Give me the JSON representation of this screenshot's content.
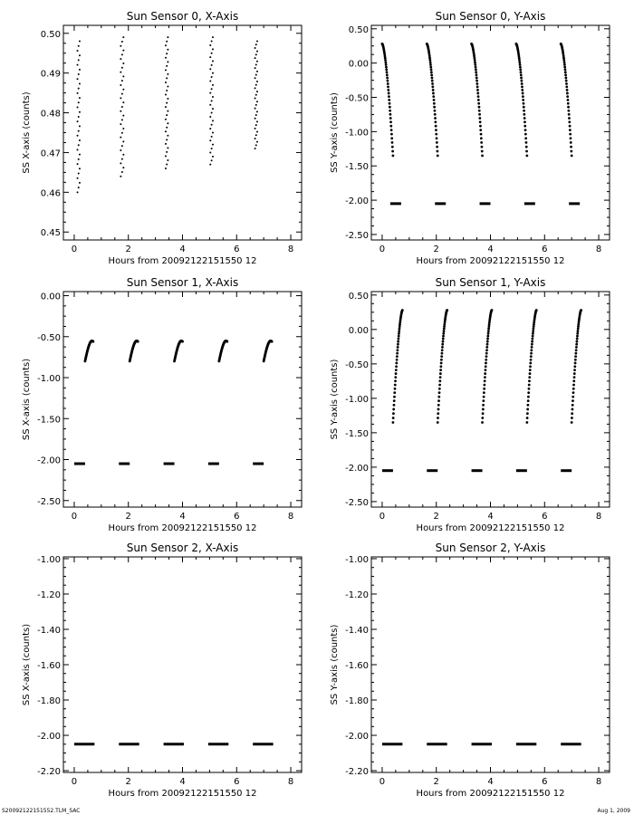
{
  "footer": {
    "left": "S20092122151552.TLM_SAC",
    "right": "Aug  1, 2009"
  },
  "chart_data": [
    {
      "type": "scatter",
      "title": "Sun Sensor 0, X-Axis",
      "xlabel": "Hours from 20092122151550 12",
      "ylabel": "SS X-axis (counts)",
      "xlim": [
        -0.4,
        8.4
      ],
      "ylim": [
        0.448,
        0.502
      ],
      "x_ticks": [
        "0",
        "2",
        "4",
        "6",
        "8"
      ],
      "x_tick_values": [
        0,
        2,
        4,
        6,
        8
      ],
      "y_ticks": [
        "0.45",
        "0.46",
        "0.47",
        "0.48",
        "0.49",
        "0.50"
      ],
      "y_tick_values": [
        0.45,
        0.46,
        0.47,
        0.48,
        0.49,
        0.5
      ],
      "series": [
        {
          "kind": "vertical-scatter",
          "segments": [
            {
              "x": [
                0.12,
                0.2
              ],
              "y": [
                0.46,
                0.498
              ]
            },
            {
              "x": [
                1.72,
                1.82
              ],
              "y": [
                0.464,
                0.499
              ]
            },
            {
              "x": [
                3.38,
                3.46
              ],
              "y": [
                0.466,
                0.499
              ]
            },
            {
              "x": [
                5.03,
                5.12
              ],
              "y": [
                0.467,
                0.499
              ]
            },
            {
              "x": [
                6.68,
                6.76
              ],
              "y": [
                0.471,
                0.498
              ]
            }
          ]
        }
      ]
    },
    {
      "type": "scatter",
      "title": "Sun Sensor 0, Y-Axis",
      "xlabel": "Hours from 20092122151550 12",
      "ylabel": "SS Y-axis (counts)",
      "xlim": [
        -0.4,
        8.4
      ],
      "ylim": [
        -2.58,
        0.55
      ],
      "x_ticks": [
        "0",
        "2",
        "4",
        "6",
        "8"
      ],
      "x_tick_values": [
        0,
        2,
        4,
        6,
        8
      ],
      "y_ticks": [
        "0.50",
        "0.00",
        "-0.50",
        "-1.00",
        "-1.50",
        "-2.00",
        "-2.50"
      ],
      "y_tick_values": [
        0.5,
        0.0,
        -0.5,
        -1.0,
        -1.5,
        -2.0,
        -2.5
      ],
      "series": [
        {
          "kind": "curve",
          "segments": [
            {
              "x": [
                0.0,
                0.4
              ],
              "y": [
                0.28,
                -1.35
              ]
            },
            {
              "x": [
                1.65,
                2.05
              ],
              "y": [
                0.28,
                -1.35
              ]
            },
            {
              "x": [
                3.3,
                3.7
              ],
              "y": [
                0.28,
                -1.35
              ]
            },
            {
              "x": [
                4.95,
                5.35
              ],
              "y": [
                0.28,
                -1.35
              ]
            },
            {
              "x": [
                6.6,
                7.0
              ],
              "y": [
                0.28,
                -1.35
              ]
            }
          ]
        },
        {
          "kind": "hsegment",
          "segments": [
            {
              "x": [
                0.3,
                0.7
              ],
              "y": [
                -2.05,
                -2.05
              ]
            },
            {
              "x": [
                1.95,
                2.35
              ],
              "y": [
                -2.05,
                -2.05
              ]
            },
            {
              "x": [
                3.6,
                4.0
              ],
              "y": [
                -2.05,
                -2.05
              ]
            },
            {
              "x": [
                5.25,
                5.65
              ],
              "y": [
                -2.05,
                -2.05
              ]
            },
            {
              "x": [
                6.9,
                7.3
              ],
              "y": [
                -2.05,
                -2.05
              ]
            }
          ]
        }
      ]
    },
    {
      "type": "scatter",
      "title": "Sun Sensor 1, X-Axis",
      "xlabel": "Hours from 20092122151550 12",
      "ylabel": "SS X-axis (counts)",
      "xlim": [
        -0.4,
        8.4
      ],
      "ylim": [
        -2.58,
        0.05
      ],
      "x_ticks": [
        "0",
        "2",
        "4",
        "6",
        "8"
      ],
      "x_tick_values": [
        0,
        2,
        4,
        6,
        8
      ],
      "y_ticks": [
        "0.00",
        "-0.50",
        "-1.00",
        "-1.50",
        "-2.00",
        "-2.50"
      ],
      "y_tick_values": [
        0.0,
        -0.5,
        -1.0,
        -1.5,
        -2.0,
        -2.5
      ],
      "series": [
        {
          "kind": "arc",
          "segments": [
            {
              "x": [
                0.4,
                0.7
              ],
              "y": [
                -0.8,
                -0.5
              ]
            },
            {
              "x": [
                2.05,
                2.35
              ],
              "y": [
                -0.8,
                -0.5
              ]
            },
            {
              "x": [
                3.7,
                4.0
              ],
              "y": [
                -0.8,
                -0.5
              ]
            },
            {
              "x": [
                5.35,
                5.65
              ],
              "y": [
                -0.8,
                -0.5
              ]
            },
            {
              "x": [
                7.0,
                7.3
              ],
              "y": [
                -0.8,
                -0.5
              ]
            }
          ]
        },
        {
          "kind": "hsegment",
          "segments": [
            {
              "x": [
                0.0,
                0.4
              ],
              "y": [
                -2.05,
                -2.05
              ]
            },
            {
              "x": [
                1.65,
                2.05
              ],
              "y": [
                -2.05,
                -2.05
              ]
            },
            {
              "x": [
                3.3,
                3.7
              ],
              "y": [
                -2.05,
                -2.05
              ]
            },
            {
              "x": [
                4.95,
                5.35
              ],
              "y": [
                -2.05,
                -2.05
              ]
            },
            {
              "x": [
                6.6,
                7.0
              ],
              "y": [
                -2.05,
                -2.05
              ]
            }
          ]
        }
      ]
    },
    {
      "type": "scatter",
      "title": "Sun Sensor 1, Y-Axis",
      "xlabel": "Hours from 20092122151550 12",
      "ylabel": "SS Y-axis (counts)",
      "xlim": [
        -0.4,
        8.4
      ],
      "ylim": [
        -2.58,
        0.55
      ],
      "x_ticks": [
        "0",
        "2",
        "4",
        "6",
        "8"
      ],
      "x_tick_values": [
        0,
        2,
        4,
        6,
        8
      ],
      "y_ticks": [
        "0.50",
        "0.00",
        "-0.50",
        "-1.00",
        "-1.50",
        "-2.00",
        "-2.50"
      ],
      "y_tick_values": [
        0.5,
        0.0,
        -0.5,
        -1.0,
        -1.5,
        -2.0,
        -2.5
      ],
      "series": [
        {
          "kind": "curve-up",
          "segments": [
            {
              "x": [
                0.4,
                0.75
              ],
              "y": [
                -1.35,
                0.28
              ]
            },
            {
              "x": [
                2.05,
                2.4
              ],
              "y": [
                -1.35,
                0.28
              ]
            },
            {
              "x": [
                3.7,
                4.05
              ],
              "y": [
                -1.35,
                0.28
              ]
            },
            {
              "x": [
                5.35,
                5.7
              ],
              "y": [
                -1.35,
                0.28
              ]
            },
            {
              "x": [
                7.0,
                7.35
              ],
              "y": [
                -1.35,
                0.28
              ]
            }
          ]
        },
        {
          "kind": "hsegment",
          "segments": [
            {
              "x": [
                0.0,
                0.4
              ],
              "y": [
                -2.05,
                -2.05
              ]
            },
            {
              "x": [
                1.65,
                2.05
              ],
              "y": [
                -2.05,
                -2.05
              ]
            },
            {
              "x": [
                3.3,
                3.7
              ],
              "y": [
                -2.05,
                -2.05
              ]
            },
            {
              "x": [
                4.95,
                5.35
              ],
              "y": [
                -2.05,
                -2.05
              ]
            },
            {
              "x": [
                6.6,
                7.0
              ],
              "y": [
                -2.05,
                -2.05
              ]
            }
          ]
        }
      ]
    },
    {
      "type": "scatter",
      "title": "Sun Sensor 2, X-Axis",
      "xlabel": "Hours from 20092122151550 12",
      "ylabel": "SS X-axis (counts)",
      "xlim": [
        -0.4,
        8.4
      ],
      "ylim": [
        -2.21,
        -0.99
      ],
      "x_ticks": [
        "0",
        "2",
        "4",
        "6",
        "8"
      ],
      "x_tick_values": [
        0,
        2,
        4,
        6,
        8
      ],
      "y_ticks": [
        "-1.00",
        "-1.20",
        "-1.40",
        "-1.60",
        "-1.80",
        "-2.00",
        "-2.20"
      ],
      "y_tick_values": [
        -1.0,
        -1.2,
        -1.4,
        -1.6,
        -1.8,
        -2.0,
        -2.2
      ],
      "series": [
        {
          "kind": "hsegment",
          "segments": [
            {
              "x": [
                0.0,
                0.75
              ],
              "y": [
                -2.05,
                -2.05
              ]
            },
            {
              "x": [
                1.65,
                2.4
              ],
              "y": [
                -2.05,
                -2.05
              ]
            },
            {
              "x": [
                3.3,
                4.05
              ],
              "y": [
                -2.05,
                -2.05
              ]
            },
            {
              "x": [
                4.95,
                5.7
              ],
              "y": [
                -2.05,
                -2.05
              ]
            },
            {
              "x": [
                6.6,
                7.35
              ],
              "y": [
                -2.05,
                -2.05
              ]
            }
          ]
        }
      ]
    },
    {
      "type": "scatter",
      "title": "Sun Sensor 2, Y-Axis",
      "xlabel": "Hours from 20092122151550 12",
      "ylabel": "SS Y-axis (counts)",
      "xlim": [
        -0.4,
        8.4
      ],
      "ylim": [
        -2.21,
        -0.99
      ],
      "x_ticks": [
        "0",
        "2",
        "4",
        "6",
        "8"
      ],
      "x_tick_values": [
        0,
        2,
        4,
        6,
        8
      ],
      "y_ticks": [
        "-1.00",
        "-1.20",
        "-1.40",
        "-1.60",
        "-1.80",
        "-2.00",
        "-2.20"
      ],
      "y_tick_values": [
        -1.0,
        -1.2,
        -1.4,
        -1.6,
        -1.8,
        -2.0,
        -2.2
      ],
      "series": [
        {
          "kind": "hsegment",
          "segments": [
            {
              "x": [
                0.0,
                0.75
              ],
              "y": [
                -2.05,
                -2.05
              ]
            },
            {
              "x": [
                1.65,
                2.4
              ],
              "y": [
                -2.05,
                -2.05
              ]
            },
            {
              "x": [
                3.3,
                4.05
              ],
              "y": [
                -2.05,
                -2.05
              ]
            },
            {
              "x": [
                4.95,
                5.7
              ],
              "y": [
                -2.05,
                -2.05
              ]
            },
            {
              "x": [
                6.6,
                7.35
              ],
              "y": [
                -2.05,
                -2.05
              ]
            }
          ]
        }
      ]
    }
  ]
}
